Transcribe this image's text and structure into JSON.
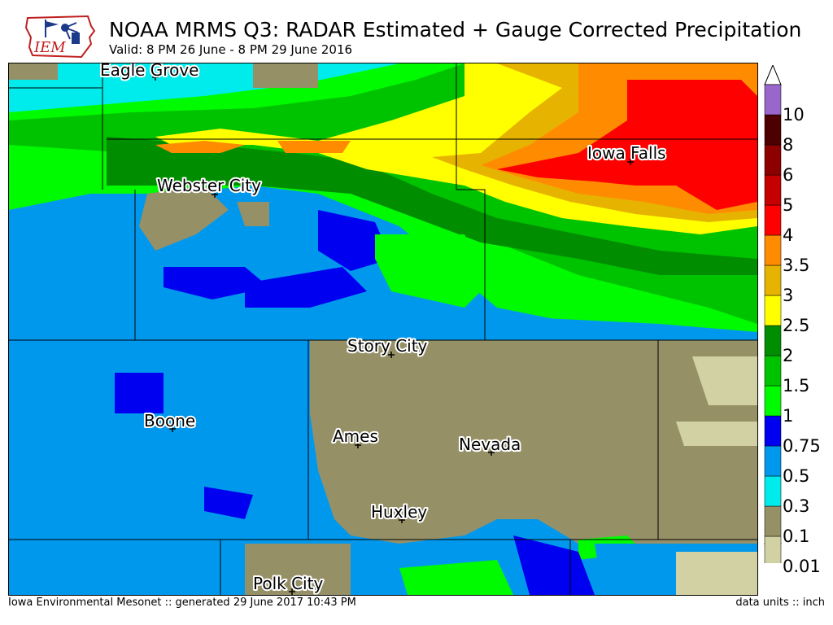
{
  "header": {
    "title": "NOAA MRMS Q3: RADAR Estimated + Gauge Corrected Precipitation",
    "subtitle": "Valid: 8 PM 26 June - 8 PM 29 June 2016",
    "logo_text": "IEM"
  },
  "map": {
    "cities": [
      {
        "name": "Eagle Grove"
      },
      {
        "name": "Webster City"
      },
      {
        "name": "Iowa Falls"
      },
      {
        "name": "Story City"
      },
      {
        "name": "Boone"
      },
      {
        "name": "Ames"
      },
      {
        "name": "Nevada"
      },
      {
        "name": "Huxley"
      },
      {
        "name": "Polk City"
      }
    ]
  },
  "legend": {
    "levels": [
      "0.01",
      "0.1",
      "0.3",
      "0.5",
      "0.75",
      "1",
      "1.5",
      "2",
      "2.5",
      "3",
      "3.5",
      "4",
      "5",
      "6",
      "8",
      "10"
    ],
    "colors": [
      "#d2d1a3",
      "#969067",
      "#00ecec",
      "#0098ec",
      "#0000f0",
      "#00fb00",
      "#00c300",
      "#008d00",
      "#ffff00",
      "#e6b400",
      "#ff8c00",
      "#ff0000",
      "#c40000",
      "#8c0000",
      "#4d0000",
      "#9966cc"
    ]
  },
  "footer": {
    "left": "Iowa Environmental Mesonet :: generated 29 June 2017 10:43 PM",
    "right": "data units :: inch"
  }
}
